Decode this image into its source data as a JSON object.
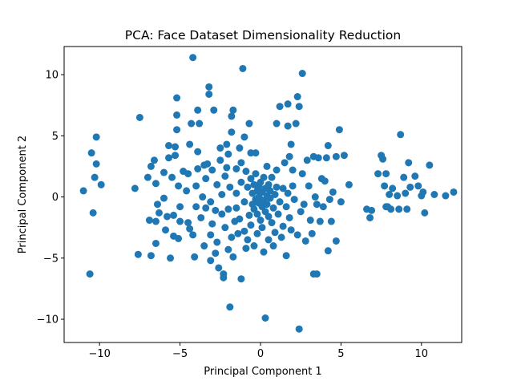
{
  "chart_data": {
    "type": "scatter",
    "title": "PCA: Face Dataset Dimensionality Reduction",
    "xlabel": "Principal Component 1",
    "ylabel": "Principal Component 2",
    "xlim": [
      -12.2,
      12.5
    ],
    "ylim": [
      -11.9,
      12.3
    ],
    "xticks": [
      -10,
      -5,
      0,
      5,
      10
    ],
    "yticks": [
      -10,
      -5,
      0,
      5,
      10
    ],
    "xtick_labels": [
      "−10",
      "−5",
      "0",
      "5",
      "10"
    ],
    "ytick_labels": [
      "−10",
      "−5",
      "0",
      "5",
      "10"
    ],
    "grid": false,
    "color": "#1f77b4",
    "points": [
      [
        -11.0,
        0.5
      ],
      [
        -10.5,
        3.6
      ],
      [
        -10.3,
        1.6
      ],
      [
        -10.2,
        2.7
      ],
      [
        -10.2,
        4.9
      ],
      [
        -9.9,
        1.0
      ],
      [
        -10.4,
        -1.3
      ],
      [
        -10.6,
        -6.3
      ],
      [
        -7.8,
        0.7
      ],
      [
        -7.5,
        6.5
      ],
      [
        -7.6,
        -4.7
      ],
      [
        -7.0,
        1.6
      ],
      [
        -6.8,
        2.5
      ],
      [
        -6.6,
        3.0
      ],
      [
        -6.5,
        1.1
      ],
      [
        -6.4,
        -0.6
      ],
      [
        -6.3,
        -1.3
      ],
      [
        -6.5,
        -2.0
      ],
      [
        -6.9,
        -1.9
      ],
      [
        -6.8,
        -4.8
      ],
      [
        -6.5,
        -3.8
      ],
      [
        -6.0,
        2.0
      ],
      [
        -6.0,
        -0.1
      ],
      [
        -5.9,
        -2.7
      ],
      [
        -5.8,
        -1.6
      ],
      [
        -5.7,
        3.2
      ],
      [
        -5.7,
        4.2
      ],
      [
        -5.6,
        -5.0
      ],
      [
        -5.5,
        1.6
      ],
      [
        -5.4,
        -1.5
      ],
      [
        -5.3,
        3.4
      ],
      [
        -5.2,
        5.5
      ],
      [
        -5.2,
        6.7
      ],
      [
        -5.2,
        8.1
      ],
      [
        -5.1,
        0.9
      ],
      [
        -5.0,
        -0.8
      ],
      [
        -5.0,
        -2.0
      ],
      [
        -5.1,
        -3.4
      ],
      [
        -5.3,
        4.1
      ],
      [
        -5.4,
        -3.2
      ],
      [
        -4.8,
        2.1
      ],
      [
        -4.6,
        0.5
      ],
      [
        -4.5,
        1.9
      ],
      [
        -4.5,
        -2.1
      ],
      [
        -4.4,
        -2.6
      ],
      [
        -4.4,
        4.3
      ],
      [
        -4.3,
        6.0
      ],
      [
        -4.2,
        11.4
      ],
      [
        -4.2,
        -3.1
      ],
      [
        -4.1,
        -4.9
      ],
      [
        -4.0,
        0.9
      ],
      [
        -4.0,
        -0.8
      ],
      [
        -3.9,
        2.3
      ],
      [
        -3.9,
        3.7
      ],
      [
        -3.9,
        7.1
      ],
      [
        -3.8,
        6.0
      ],
      [
        -3.7,
        -1.7
      ],
      [
        -3.6,
        0.0
      ],
      [
        -3.5,
        -4.0
      ],
      [
        -3.5,
        2.6
      ],
      [
        -3.4,
        -0.9
      ],
      [
        -3.4,
        1.5
      ],
      [
        -3.3,
        2.7
      ],
      [
        -3.2,
        9.0
      ],
      [
        -3.2,
        8.4
      ],
      [
        -3.1,
        -0.4
      ],
      [
        -3.1,
        -3.1
      ],
      [
        -3.1,
        -5.2
      ],
      [
        -3.0,
        -2.2
      ],
      [
        -3.0,
        2.2
      ],
      [
        -2.9,
        7.1
      ],
      [
        -2.8,
        -1.1
      ],
      [
        -2.8,
        -4.6
      ],
      [
        -2.7,
        -3.7
      ],
      [
        -2.7,
        1.0
      ],
      [
        -2.6,
        -5.8
      ],
      [
        -2.5,
        3.0
      ],
      [
        -2.5,
        4.0
      ],
      [
        -2.4,
        -1.4
      ],
      [
        -2.4,
        0.2
      ],
      [
        -2.3,
        -6.3
      ],
      [
        -2.3,
        -6.6
      ],
      [
        -2.2,
        -2.5
      ],
      [
        -2.2,
        1.7
      ],
      [
        -2.1,
        2.4
      ],
      [
        -2.1,
        4.3
      ],
      [
        -2.0,
        -4.3
      ],
      [
        -2.0,
        -1.0
      ],
      [
        -2.0,
        3.5
      ],
      [
        -1.9,
        -9.0
      ],
      [
        -1.9,
        0.8
      ],
      [
        -1.8,
        -3.3
      ],
      [
        -1.8,
        5.3
      ],
      [
        -1.8,
        6.6
      ],
      [
        -1.7,
        7.1
      ],
      [
        -1.7,
        -4.9
      ],
      [
        -1.6,
        -2.0
      ],
      [
        -1.5,
        2.3
      ],
      [
        -1.5,
        0.3
      ],
      [
        -1.5,
        -0.9
      ],
      [
        -1.4,
        -3.0
      ],
      [
        -1.3,
        4.0
      ],
      [
        -1.3,
        -1.8
      ],
      [
        -1.2,
        2.8
      ],
      [
        -1.2,
        1.2
      ],
      [
        -1.2,
        -6.7
      ],
      [
        -1.1,
        10.5
      ],
      [
        -1.0,
        -0.4
      ],
      [
        -1.0,
        -2.8
      ],
      [
        -1.0,
        4.9
      ],
      [
        -0.9,
        2.1
      ],
      [
        -0.9,
        -4.2
      ],
      [
        -0.8,
        0.8
      ],
      [
        -0.8,
        -3.5
      ],
      [
        -0.7,
        6.0
      ],
      [
        -0.7,
        -1.5
      ],
      [
        -0.6,
        1.5
      ],
      [
        -0.6,
        -2.3
      ],
      [
        -0.6,
        3.6
      ],
      [
        -0.5,
        0.3
      ],
      [
        -0.5,
        -0.6
      ],
      [
        -0.4,
        1.0
      ],
      [
        -0.4,
        -1.0
      ],
      [
        -0.4,
        -4.0
      ],
      [
        -0.3,
        1.9
      ],
      [
        -0.3,
        3.6
      ],
      [
        -0.3,
        -0.2
      ],
      [
        -0.2,
        0.5
      ],
      [
        -0.2,
        -1.4
      ],
      [
        -0.2,
        -3.0
      ],
      [
        -0.1,
        0.0
      ],
      [
        -0.1,
        0.9
      ],
      [
        -0.1,
        -0.5
      ],
      [
        0.0,
        1.2
      ],
      [
        0.0,
        -1.9
      ],
      [
        0.0,
        -0.2
      ],
      [
        0.1,
        0.4
      ],
      [
        0.1,
        -0.8
      ],
      [
        0.1,
        -2.5
      ],
      [
        0.2,
        1.6
      ],
      [
        0.2,
        -0.3
      ],
      [
        0.2,
        -4.5
      ],
      [
        0.3,
        0.7
      ],
      [
        0.3,
        -1.2
      ],
      [
        0.3,
        -9.9
      ],
      [
        0.4,
        0.1
      ],
      [
        0.4,
        2.5
      ],
      [
        0.4,
        -0.6
      ],
      [
        0.5,
        1.0
      ],
      [
        0.5,
        -1.6
      ],
      [
        0.5,
        -3.5
      ],
      [
        0.6,
        -0.1
      ],
      [
        0.6,
        0.5
      ],
      [
        0.7,
        -2.1
      ],
      [
        0.7,
        1.6
      ],
      [
        0.8,
        -0.9
      ],
      [
        0.8,
        -4.0
      ],
      [
        0.9,
        0.2
      ],
      [
        0.9,
        -2.9
      ],
      [
        1.0,
        0.8
      ],
      [
        1.0,
        2.2
      ],
      [
        1.0,
        6.0
      ],
      [
        1.1,
        -1.4
      ],
      [
        1.2,
        7.4
      ],
      [
        1.2,
        -0.4
      ],
      [
        1.3,
        -3.3
      ],
      [
        1.4,
        0.7
      ],
      [
        1.4,
        -2.4
      ],
      [
        1.5,
        2.8
      ],
      [
        1.6,
        -0.8
      ],
      [
        1.6,
        -4.8
      ],
      [
        1.7,
        5.8
      ],
      [
        1.7,
        0.3
      ],
      [
        1.7,
        7.6
      ],
      [
        1.8,
        -1.7
      ],
      [
        1.8,
        3.3
      ],
      [
        1.9,
        4.3
      ],
      [
        1.9,
        -2.7
      ],
      [
        2.0,
        0.9
      ],
      [
        2.0,
        2.2
      ],
      [
        2.1,
        -0.2
      ],
      [
        2.2,
        6.0
      ],
      [
        2.3,
        -3.1
      ],
      [
        2.3,
        8.2
      ],
      [
        2.4,
        7.4
      ],
      [
        2.4,
        -10.8
      ],
      [
        2.5,
        -1.2
      ],
      [
        2.6,
        10.1
      ],
      [
        2.6,
        1.9
      ],
      [
        2.7,
        -0.6
      ],
      [
        2.8,
        -3.6
      ],
      [
        2.9,
        3.0
      ],
      [
        3.0,
        0.9
      ],
      [
        3.1,
        -1.9
      ],
      [
        3.2,
        -3.0
      ],
      [
        3.3,
        3.3
      ],
      [
        3.3,
        -6.3
      ],
      [
        3.4,
        0.0
      ],
      [
        3.5,
        -6.3
      ],
      [
        3.5,
        -0.6
      ],
      [
        3.6,
        3.2
      ],
      [
        3.7,
        -2.0
      ],
      [
        3.8,
        1.5
      ],
      [
        3.9,
        -0.8
      ],
      [
        4.0,
        1.3
      ],
      [
        4.1,
        3.2
      ],
      [
        4.2,
        -4.4
      ],
      [
        4.2,
        4.2
      ],
      [
        4.3,
        -0.2
      ],
      [
        4.4,
        -2.0
      ],
      [
        4.5,
        0.4
      ],
      [
        4.7,
        -3.6
      ],
      [
        4.7,
        3.3
      ],
      [
        4.9,
        5.5
      ],
      [
        5.0,
        -0.4
      ],
      [
        5.2,
        3.4
      ],
      [
        5.5,
        1.0
      ],
      [
        6.6,
        -1.0
      ],
      [
        6.8,
        -1.7
      ],
      [
        6.9,
        -1.1
      ],
      [
        7.3,
        1.9
      ],
      [
        7.5,
        3.4
      ],
      [
        7.6,
        3.1
      ],
      [
        7.7,
        0.9
      ],
      [
        7.8,
        -0.8
      ],
      [
        7.8,
        1.9
      ],
      [
        7.9,
        -0.8
      ],
      [
        8.0,
        0.2
      ],
      [
        8.1,
        -1.0
      ],
      [
        8.2,
        0.7
      ],
      [
        8.5,
        0.1
      ],
      [
        8.6,
        -1.0
      ],
      [
        8.7,
        5.1
      ],
      [
        8.9,
        1.6
      ],
      [
        9.0,
        0.3
      ],
      [
        9.1,
        -1.0
      ],
      [
        9.2,
        2.8
      ],
      [
        9.3,
        0.8
      ],
      [
        9.6,
        1.7
      ],
      [
        9.8,
        0.9
      ],
      [
        10.0,
        0.1
      ],
      [
        10.1,
        0.4
      ],
      [
        10.2,
        -1.3
      ],
      [
        10.5,
        2.6
      ],
      [
        10.8,
        0.2
      ],
      [
        11.5,
        0.1
      ],
      [
        12.0,
        0.4
      ]
    ]
  }
}
